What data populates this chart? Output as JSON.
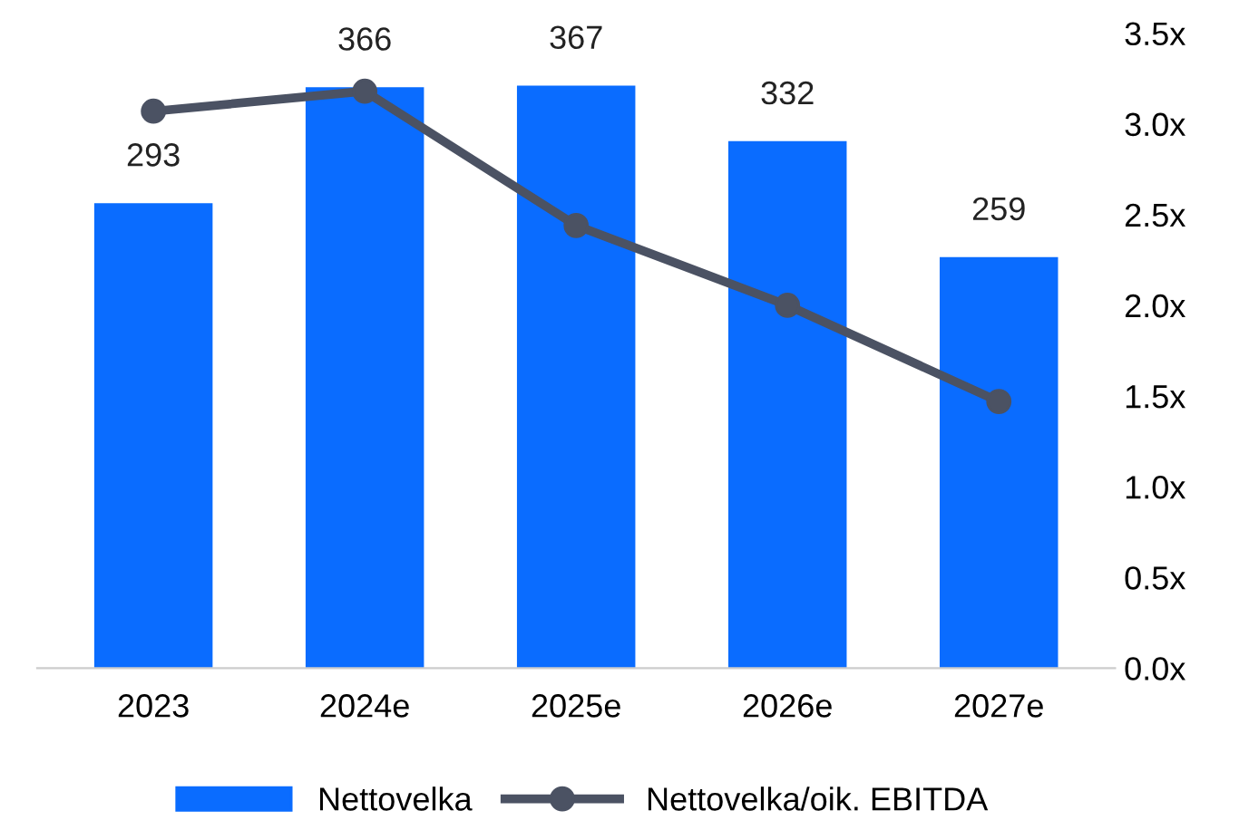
{
  "chart_data": {
    "type": "bar",
    "categories": [
      "2023",
      "2024e",
      "2025e",
      "2026e",
      "2027e"
    ],
    "series": [
      {
        "name": "Nettovelka",
        "color": "#0a6cff",
        "values": [
          293,
          366,
          367,
          332,
          259
        ],
        "value_labels": [
          "293",
          "366",
          "367",
          "332",
          "259"
        ]
      },
      {
        "name": "Nettovelka/oik. EBITDA",
        "type": "line",
        "axis": "y2",
        "color": "#4b5263",
        "marker": "circle",
        "values": [
          3.07,
          3.18,
          2.44,
          2.0,
          1.47
        ]
      }
    ],
    "y2lim": [
      0,
      3.5
    ],
    "y2ticks": [
      {
        "value": 0,
        "label": "0.0x"
      },
      {
        "value": 0.5,
        "label": "0.5x"
      },
      {
        "value": 1,
        "label": "1.0x"
      },
      {
        "value": 1.5,
        "label": "1.5x"
      },
      {
        "value": 2,
        "label": "2.0x"
      },
      {
        "value": 2.5,
        "label": "2.5x"
      },
      {
        "value": 3,
        "label": "3.0x"
      },
      {
        "value": 3.5,
        "label": "3.5x"
      }
    ],
    "tick_labels": [
      "x",
      "y2"
    ],
    "grid": false,
    "legend": "bottom"
  }
}
